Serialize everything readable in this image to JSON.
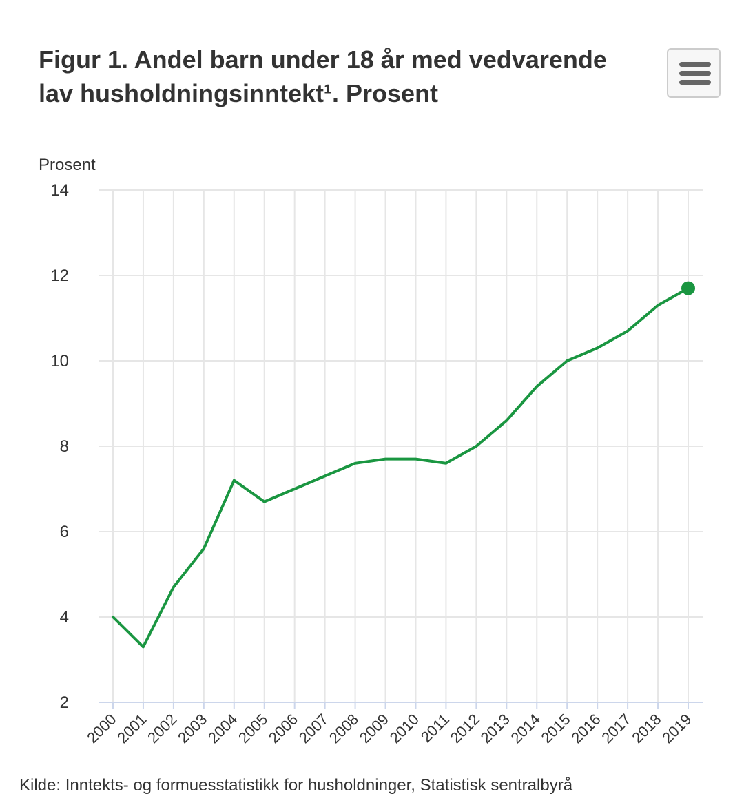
{
  "menu": {
    "icon": "hamburger-menu-icon"
  },
  "chart_data": {
    "type": "line",
    "title": "Figur 1. Andel barn under 18 år med vedvarende lav husholdningsinntekt¹. Prosent",
    "ylabel": "Prosent",
    "xlabel": "",
    "x": [
      "2000",
      "2001",
      "2002",
      "2003",
      "2004",
      "2005",
      "2006",
      "2007",
      "2008",
      "2009",
      "2010",
      "2011",
      "2012",
      "2013",
      "2014",
      "2015",
      "2016",
      "2017",
      "2018",
      "2019"
    ],
    "series": [
      {
        "values": [
          4.0,
          3.3,
          4.7,
          5.6,
          7.2,
          6.7,
          7.0,
          7.3,
          7.6,
          7.7,
          7.7,
          7.6,
          8.0,
          8.6,
          9.4,
          10.0,
          10.3,
          10.7,
          11.3,
          11.7
        ],
        "color": "#1a9641"
      }
    ],
    "ylim": [
      2,
      14
    ],
    "yticks": [
      2,
      4,
      6,
      8,
      10,
      12,
      14
    ],
    "grid": true,
    "legend": "none",
    "last_point_marker": true
  },
  "footer": {
    "source": "Kilde: Inntekts- og formuesstatistikk for husholdninger, Statistisk sentralbyrå"
  }
}
